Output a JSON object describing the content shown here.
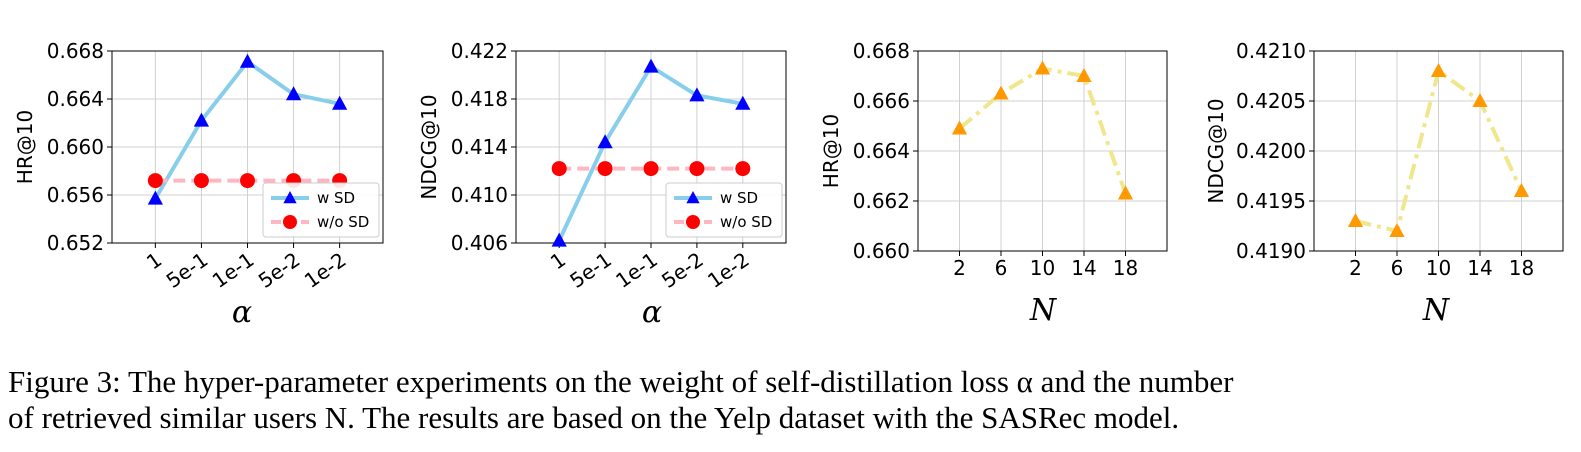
{
  "chart_data": [
    {
      "type": "line",
      "xlabel": "α",
      "ylabel": "HR@10",
      "categories": [
        "1",
        "5e-1",
        "1e-1",
        "5e-2",
        "1e-2"
      ],
      "ylim": [
        0.652,
        0.668
      ],
      "yticks": [
        "0.652",
        "0.656",
        "0.660",
        "0.664",
        "0.668"
      ],
      "grid": true,
      "legend_position": "lower-right",
      "series": [
        {
          "name": "w SD",
          "values": [
            0.6557,
            0.6622,
            0.6671,
            0.6644,
            0.6636
          ],
          "color": "#87ceeb",
          "marker_color": "#0000ff",
          "marker": "triangle",
          "linestyle": "solid"
        },
        {
          "name": "w/o SD",
          "values": [
            0.6572,
            0.6572,
            0.6572,
            0.6572,
            0.6572
          ],
          "color": "#ffb6c1",
          "marker_color": "#ff0000",
          "marker": "circle",
          "linestyle": "dashed"
        }
      ]
    },
    {
      "type": "line",
      "xlabel": "α",
      "ylabel": "NDCG@10",
      "categories": [
        "1",
        "5e-1",
        "1e-1",
        "5e-2",
        "1e-2"
      ],
      "ylim": [
        0.406,
        0.422
      ],
      "yticks": [
        "0.406",
        "0.410",
        "0.414",
        "0.418",
        "0.422"
      ],
      "grid": true,
      "legend_position": "lower-right",
      "series": [
        {
          "name": "w SD",
          "values": [
            0.4062,
            0.4144,
            0.4207,
            0.4183,
            0.4176
          ],
          "color": "#87ceeb",
          "marker_color": "#0000ff",
          "marker": "triangle",
          "linestyle": "solid"
        },
        {
          "name": "w/o SD",
          "values": [
            0.4122,
            0.4122,
            0.4122,
            0.4122,
            0.4122
          ],
          "color": "#ffb6c1",
          "marker_color": "#ff0000",
          "marker": "circle",
          "linestyle": "dashed"
        }
      ]
    },
    {
      "type": "line",
      "xlabel": "N",
      "ylabel": "HR@10",
      "x": [
        2,
        6,
        10,
        14,
        18
      ],
      "xticks": [
        "2",
        "6",
        "10",
        "14",
        "18"
      ],
      "xlim": [
        -2,
        22
      ],
      "ylim": [
        0.66,
        0.668
      ],
      "yticks": [
        "0.660",
        "0.662",
        "0.664",
        "0.666",
        "0.668"
      ],
      "grid": true,
      "series": [
        {
          "values": [
            0.6649,
            0.6663,
            0.6673,
            0.667,
            0.6623
          ],
          "color": "#f0e68c",
          "marker_color": "#ff9900",
          "marker": "triangle",
          "linestyle": "dashdot"
        }
      ]
    },
    {
      "type": "line",
      "xlabel": "N",
      "ylabel": "NDCG@10",
      "x": [
        2,
        6,
        10,
        14,
        18
      ],
      "xticks": [
        "2",
        "6",
        "10",
        "14",
        "18"
      ],
      "xlim": [
        -2,
        22
      ],
      "ylim": [
        0.419,
        0.421
      ],
      "yticks": [
        "0.4190",
        "0.4195",
        "0.4200",
        "0.4205",
        "0.4210"
      ],
      "grid": true,
      "series": [
        {
          "values": [
            0.4193,
            0.4192,
            0.4208,
            0.4205,
            0.4196
          ],
          "color": "#f0e68c",
          "marker_color": "#ff9900",
          "marker": "triangle",
          "linestyle": "dashdot"
        }
      ]
    }
  ],
  "caption": {
    "line1": "Figure 3: The hyper-parameter experiments on the weight of self-distillation loss α and the number",
    "line2": "of retrieved similar users N. The results are based on the Yelp dataset with the SASRec model."
  }
}
